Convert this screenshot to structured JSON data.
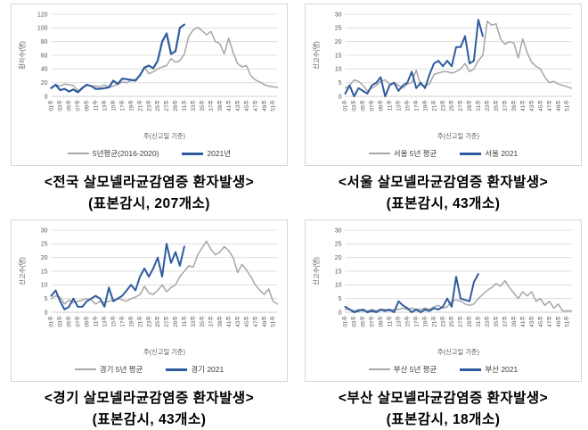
{
  "page": {
    "background": "#ffffff",
    "grid_color": "#d9d9d9",
    "axis_color": "#bfbfbf",
    "text_color": "#595959"
  },
  "chart_data": [
    {
      "type": "line",
      "region": "전국",
      "caption_line1": "<전국 살모넬라균감염증 환자발생>",
      "caption_line2": "(표본감시, 207개소)",
      "ylabel": "환자수(명)",
      "xlabel": "주(신고일 기준)",
      "ylim": [
        0,
        120
      ],
      "ytick_step": 20,
      "weeks": 52,
      "x_tick_labels": [
        "01주",
        "03주",
        "05주",
        "07주",
        "09주",
        "11주",
        "13주",
        "15주",
        "17주",
        "19주",
        "21주",
        "23주",
        "25주",
        "27주",
        "29주",
        "31주",
        "33주",
        "35주",
        "37주",
        "39주",
        "41주",
        "43주",
        "45주",
        "47주",
        "49주",
        "51주"
      ],
      "series": [
        {
          "name": "5년평균(2016-2020)",
          "color": "#a6a6a6",
          "width": 1.5,
          "values": [
            13,
            17,
            15,
            18,
            17,
            16,
            8,
            13,
            16,
            15,
            15,
            14,
            17,
            13,
            15,
            18,
            21,
            20,
            23,
            25,
            30,
            43,
            33,
            36,
            40,
            43,
            45,
            55,
            50,
            52,
            62,
            88,
            97,
            101,
            96,
            90,
            95,
            80,
            77,
            62,
            85,
            64,
            48,
            43,
            45,
            30,
            24,
            21,
            17,
            15,
            14,
            13
          ]
        },
        {
          "name": "2021년",
          "color": "#2f5b9e",
          "width": 2.2,
          "values": [
            12,
            17,
            9,
            11,
            7,
            10,
            6,
            12,
            17,
            15,
            11,
            11,
            12,
            13,
            23,
            18,
            26,
            25,
            24,
            23,
            31,
            42,
            45,
            41,
            52,
            80,
            92,
            62,
            66,
            100,
            105
          ]
        }
      ]
    },
    {
      "type": "line",
      "region": "서울",
      "caption_line1": "<서울 살모넬라균감염증 환자발생>",
      "caption_line2": "(표본감시, 43개소)",
      "ylabel": "신고수(명)",
      "xlabel": "주(신고일 기준)",
      "ylim": [
        0,
        30
      ],
      "ytick_step": 5,
      "weeks": 52,
      "x_tick_labels": [
        "01주",
        "03주",
        "05주",
        "07주",
        "09주",
        "11주",
        "13주",
        "15주",
        "17주",
        "19주",
        "21주",
        "23주",
        "25주",
        "27주",
        "29주",
        "31주",
        "33주",
        "35주",
        "37주",
        "39주",
        "41주",
        "43주",
        "45주",
        "47주",
        "49주",
        "51주"
      ],
      "series": [
        {
          "name": "서울 5년 평균",
          "color": "#a6a6a6",
          "width": 1.5,
          "values": [
            3,
            4,
            6,
            5.5,
            4,
            2,
            3,
            4,
            5.5,
            6,
            4.5,
            5,
            4,
            3,
            4.5,
            5,
            9.5,
            4,
            4,
            4.5,
            8,
            8.5,
            9,
            9,
            8.5,
            9,
            10,
            12,
            9,
            10,
            13,
            15,
            27.5,
            26,
            26.5,
            21,
            19,
            20,
            19.5,
            14,
            21,
            16,
            12.5,
            11,
            10,
            7,
            5,
            5.5,
            4.5,
            4,
            3.5,
            3
          ]
        },
        {
          "name": "서울 2021",
          "color": "#2f5b9e",
          "width": 2.0,
          "values": [
            1,
            4,
            0,
            3,
            2,
            1,
            4,
            5,
            7,
            0,
            4,
            5,
            2,
            4,
            5,
            9,
            3,
            5,
            3,
            8,
            12,
            13,
            11,
            13,
            11,
            18,
            18,
            22,
            12,
            13,
            28,
            22
          ]
        }
      ]
    },
    {
      "type": "line",
      "region": "경기",
      "caption_line1": "<경기 살모넬라균감염증 환자발생>",
      "caption_line2": "(표본감시, 43개소)",
      "ylabel": "신고수(명)",
      "xlabel": "주(신고일 기준)",
      "ylim": [
        0,
        30
      ],
      "ytick_step": 5,
      "weeks": 52,
      "x_tick_labels": [
        "01주",
        "03주",
        "05주",
        "07주",
        "09주",
        "11주",
        "13주",
        "15주",
        "17주",
        "19주",
        "21주",
        "23주",
        "25주",
        "27주",
        "29주",
        "31주",
        "33주",
        "35주",
        "37주",
        "39주",
        "41주",
        "43주",
        "45주",
        "47주",
        "49주",
        "51주"
      ],
      "series": [
        {
          "name": "경기 5년 평균",
          "color": "#a6a6a6",
          "width": 1.5,
          "values": [
            5,
            6,
            5.5,
            3,
            4.5,
            3.5,
            4,
            4.5,
            5,
            4.5,
            3,
            4,
            3.5,
            4,
            4.5,
            5,
            4.5,
            4,
            5,
            5.5,
            6.5,
            9.5,
            7,
            6.5,
            8,
            10,
            7.5,
            9,
            10,
            13,
            15,
            17,
            16.5,
            21,
            23.5,
            26,
            23,
            21,
            22,
            24,
            22.5,
            20,
            14.5,
            17.5,
            15.5,
            13,
            10,
            8,
            6.5,
            8.5,
            4,
            3
          ]
        },
        {
          "name": "경기 2021",
          "color": "#2f5b9e",
          "width": 2.0,
          "values": [
            6,
            8,
            4,
            1,
            2,
            5,
            2,
            2,
            4,
            5,
            6,
            5,
            2,
            9,
            4,
            5,
            6,
            8,
            10,
            8,
            13,
            16,
            13,
            16,
            20,
            13,
            25,
            18,
            22,
            17,
            24
          ]
        }
      ]
    },
    {
      "type": "line",
      "region": "부산",
      "caption_line1": "<부산 살모넬라균감염증 환자발생>",
      "caption_line2": "(표본감시, 18개소)",
      "ylabel": "신고수(명)",
      "xlabel": "주(신고일 기준)",
      "ylim": [
        0,
        30
      ],
      "ytick_step": 5,
      "weeks": 52,
      "x_tick_labels": [
        "01주",
        "03주",
        "05주",
        "07주",
        "09주",
        "11주",
        "13주",
        "15주",
        "17주",
        "19주",
        "21주",
        "23주",
        "25주",
        "27주",
        "29주",
        "31주",
        "33주",
        "35주",
        "37주",
        "39주",
        "41주",
        "43주",
        "45주",
        "47주",
        "49주",
        "51주"
      ],
      "series": [
        {
          "name": "부산 5년 평균",
          "color": "#a6a6a6",
          "width": 1.5,
          "values": [
            1,
            1,
            0.5,
            1,
            0.5,
            0.5,
            1,
            0.5,
            1,
            1,
            0.5,
            1,
            1,
            1.5,
            1,
            1.5,
            1,
            1,
            1.5,
            1,
            2,
            2.5,
            1.5,
            2,
            4,
            4.5,
            4,
            3,
            2.5,
            3,
            5,
            6.5,
            8,
            9,
            10.5,
            9.5,
            11.5,
            9,
            7,
            5,
            7.5,
            6,
            7.5,
            4,
            5,
            2.5,
            4,
            1.5,
            3,
            0.5,
            0.5,
            0.5
          ]
        },
        {
          "name": "부산 2021",
          "color": "#2f5b9e",
          "width": 2.0,
          "values": [
            2,
            1,
            0,
            0.5,
            1,
            0,
            0.5,
            0,
            1,
            0.5,
            1,
            0,
            4,
            2.5,
            1.5,
            0,
            1,
            0,
            1,
            0.5,
            1.5,
            1,
            2,
            5,
            2,
            13,
            5,
            4.5,
            4,
            11,
            14
          ]
        }
      ]
    }
  ]
}
